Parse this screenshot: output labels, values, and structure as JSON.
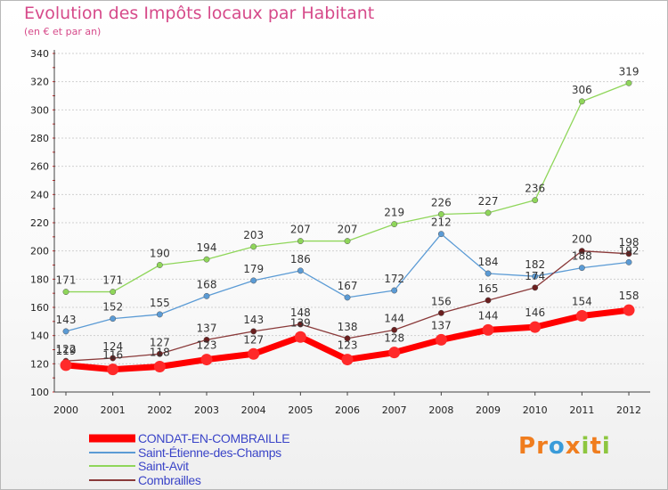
{
  "title": "Evolution des Impôts locaux par Habitant",
  "subtitle": "(en € et par an)",
  "brand": {
    "letters": [
      "P",
      "r",
      "o",
      "x",
      "i",
      "t",
      "i"
    ],
    "colors": [
      "#f07d1e",
      "#f07d1e",
      "#3a9bd9",
      "#f07d1e",
      "#8dc63f",
      "#f07d1e",
      "#8dc63f"
    ]
  },
  "chart_data": {
    "type": "line",
    "x": [
      2000,
      2001,
      2002,
      2003,
      2004,
      2005,
      2006,
      2007,
      2008,
      2009,
      2010,
      2011,
      2012
    ],
    "ylim": [
      100,
      340
    ],
    "yticks": [
      100,
      120,
      140,
      160,
      180,
      200,
      220,
      240,
      260,
      280,
      300,
      320,
      340
    ],
    "grid": "horizontal",
    "legend_placement": "bottom",
    "series": [
      {
        "name": "CONDAT-EN-COMBRAILLE",
        "color": "#ff0000",
        "marker": "#ff2a2a",
        "values": [
          119,
          116,
          118,
          123,
          127,
          139,
          123,
          128,
          137,
          144,
          146,
          154,
          158
        ],
        "labels": [
          "119",
          "116",
          "118",
          "123",
          "127",
          "139",
          "123",
          "128",
          "137",
          "144",
          "146",
          "154",
          "158"
        ]
      },
      {
        "name": "Saint-Étienne-des-Champs",
        "color": "#5b9bd5",
        "marker": "#5b9bd5",
        "values": [
          143,
          152,
          155,
          168,
          179,
          186,
          167,
          172,
          212,
          184,
          182,
          188,
          192
        ],
        "labels": [
          "143",
          "152",
          "155",
          "168",
          "179",
          "186",
          "167",
          "172",
          "212",
          "184",
          "182",
          "188",
          "192"
        ]
      },
      {
        "name": "Saint-Avit",
        "color": "#8fd65a",
        "marker": "#8fd65a",
        "values": [
          171,
          171,
          190,
          194,
          203,
          207,
          207,
          219,
          226,
          227,
          236,
          306,
          319
        ],
        "labels": [
          "171",
          "171",
          "190",
          "194",
          "203",
          "207",
          "207",
          "219",
          "226",
          "227",
          "236",
          "306",
          "319"
        ]
      },
      {
        "name": "Combrailles",
        "color": "#8a3a3a",
        "marker": "#6b1f1f",
        "values": [
          122,
          124,
          127,
          137,
          143,
          148,
          138,
          144,
          156,
          165,
          174,
          200,
          198
        ],
        "labels": [
          "122",
          "124",
          "127",
          "137",
          "143",
          "148",
          "138",
          "144",
          "156",
          "165",
          "174",
          "200",
          "198"
        ]
      }
    ]
  }
}
